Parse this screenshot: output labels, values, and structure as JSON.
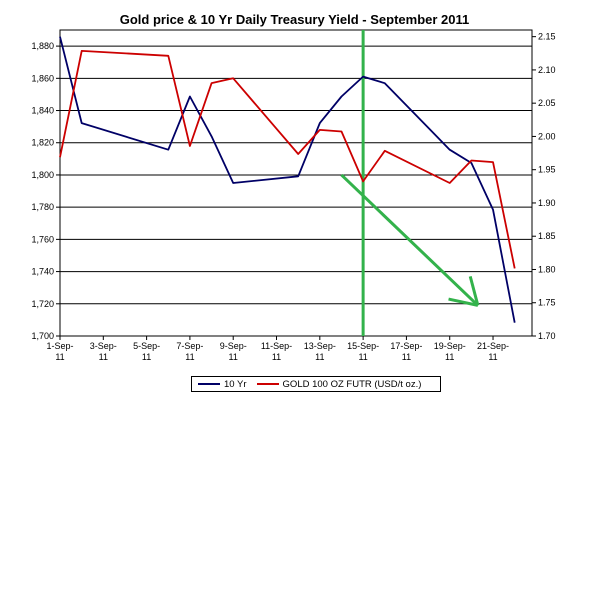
{
  "chart_data": {
    "type": "line",
    "title": "Gold price & 10 Yr Daily Treasury Yield - September 2011",
    "x_tick_labels": [
      "1-Sep-\n11",
      "3-Sep-\n11",
      "5-Sep-\n11",
      "7-Sep-\n11",
      "9-Sep-\n11",
      "11-Sep-\n11",
      "13-Sep-\n11",
      "15-Sep-\n11",
      "17-Sep-\n11",
      "19-Sep-\n11",
      "21-Sep-\n11"
    ],
    "x_day_range": [
      1,
      22.8
    ],
    "left_axis": {
      "range": [
        1700,
        1890
      ],
      "ticks": [
        "1,700",
        "1,720",
        "1,740",
        "1,760",
        "1,780",
        "1,800",
        "1,820",
        "1,840",
        "1,860",
        "1,880"
      ]
    },
    "right_axis": {
      "range": [
        1.7,
        2.16
      ],
      "ticks": [
        "1.70",
        "1.75",
        "1.80",
        "1.85",
        "1.90",
        "1.95",
        "2.00",
        "2.05",
        "2.10",
        "2.15"
      ]
    },
    "grid": "horizontal",
    "legend_position": "bottom",
    "series": [
      {
        "name": "10 Yr",
        "axis": "right",
        "color": "#000066",
        "days": [
          1,
          2,
          6,
          7,
          8,
          9,
          12,
          13,
          14,
          15,
          16,
          19,
          20,
          21,
          22
        ],
        "values": [
          2.15,
          2.02,
          1.98,
          2.06,
          2.0,
          1.93,
          1.94,
          2.02,
          2.06,
          2.09,
          2.08,
          1.98,
          1.96,
          1.89,
          1.72
        ]
      },
      {
        "name": "GOLD 100 OZ FUTR (USD/t oz.)",
        "axis": "left",
        "color": "#cc0000",
        "days": [
          1,
          2,
          6,
          7,
          8,
          9,
          12,
          13,
          14,
          15,
          16,
          19,
          20,
          21,
          22
        ],
        "values": [
          1811,
          1877,
          1874,
          1818,
          1857,
          1860,
          1813,
          1828,
          1827,
          1796,
          1815,
          1795,
          1809,
          1808,
          1742
        ]
      }
    ],
    "annotations": [
      {
        "kind": "vertical-line",
        "day": 15,
        "color": "#33b24b"
      },
      {
        "kind": "arrow",
        "from": {
          "day": 14.0,
          "left_value": 1800
        },
        "to": {
          "day": 20.3,
          "left_value": 1719
        },
        "color": "#33b24b"
      }
    ]
  }
}
